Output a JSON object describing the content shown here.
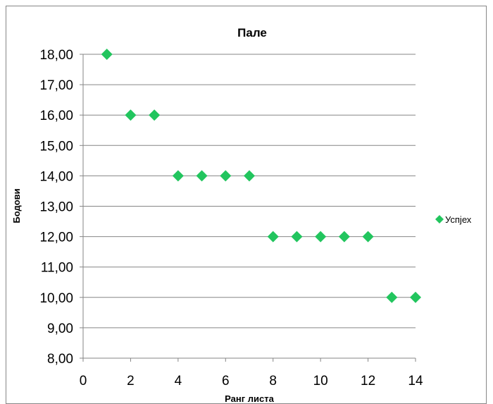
{
  "chart_data": {
    "type": "scatter",
    "title": "Пале",
    "xlabel": "Ранг листа",
    "ylabel": "Бодови",
    "xlim": [
      0,
      14
    ],
    "ylim": [
      8,
      18
    ],
    "xticks": [
      0,
      2,
      4,
      6,
      8,
      10,
      12,
      14
    ],
    "yticks": [
      8,
      9,
      10,
      11,
      12,
      13,
      14,
      15,
      16,
      17,
      18
    ],
    "x_tick_labels": [
      "0",
      "2",
      "4",
      "6",
      "8",
      "10",
      "12",
      "14"
    ],
    "y_tick_labels": [
      "8,00",
      "9,00",
      "10,00",
      "11,00",
      "12,00",
      "13,00",
      "14,00",
      "15,00",
      "16,00",
      "17,00",
      "18,00"
    ],
    "grid": "horizontal",
    "legend_position": "right",
    "series": [
      {
        "name": "Успјех",
        "color": "#22c55e",
        "marker": "diamond",
        "x": [
          1,
          2,
          3,
          4,
          5,
          6,
          7,
          8,
          9,
          10,
          11,
          12,
          13,
          14
        ],
        "y": [
          18,
          16,
          16,
          14,
          14,
          14,
          14,
          12,
          12,
          12,
          12,
          12,
          10,
          10
        ]
      }
    ]
  }
}
